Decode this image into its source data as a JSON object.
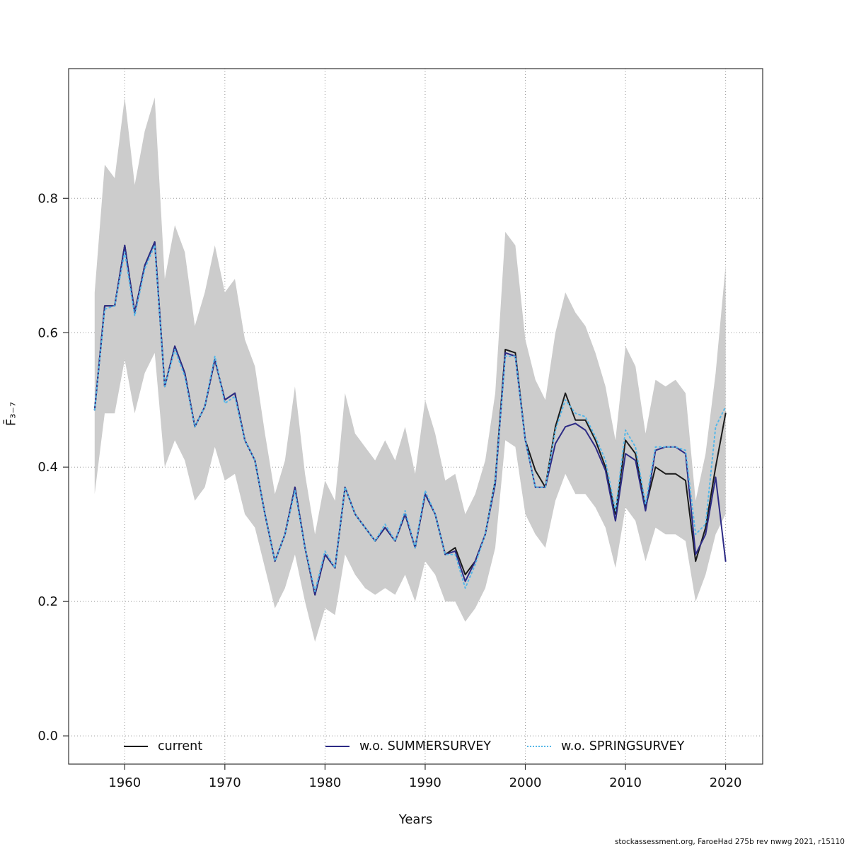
{
  "footer": {
    "text": "stockassessment.org, FaroeHad 275b rev nwwg 2021, r15110"
  },
  "chart_data": {
    "type": "line",
    "title": "",
    "xlabel": "Years",
    "ylabel": "F̄₃₋₇",
    "grid": true,
    "legend_position": "bottom-inside",
    "xlim": [
      1954.4,
      2023.7
    ],
    "ylim": [
      -0.042,
      0.993
    ],
    "x_ticks": [
      1960,
      1970,
      1980,
      1990,
      2000,
      2010,
      2020
    ],
    "y_ticks": [
      0.0,
      0.2,
      0.4,
      0.6,
      0.8
    ],
    "x": [
      1957,
      1958,
      1959,
      1960,
      1961,
      1962,
      1963,
      1964,
      1965,
      1966,
      1967,
      1968,
      1969,
      1970,
      1971,
      1972,
      1973,
      1974,
      1975,
      1976,
      1977,
      1978,
      1979,
      1980,
      1981,
      1982,
      1983,
      1984,
      1985,
      1986,
      1987,
      1988,
      1989,
      1990,
      1991,
      1992,
      1993,
      1994,
      1995,
      1996,
      1997,
      1998,
      1999,
      2000,
      2001,
      2002,
      2003,
      2004,
      2005,
      2006,
      2007,
      2008,
      2009,
      2010,
      2011,
      2012,
      2013,
      2014,
      2015,
      2016,
      2017,
      2018,
      2019,
      2020
    ],
    "band": {
      "color": "#cccccc",
      "upper": [
        0.66,
        0.85,
        0.83,
        0.95,
        0.82,
        0.9,
        0.95,
        0.68,
        0.76,
        0.72,
        0.61,
        0.66,
        0.73,
        0.66,
        0.68,
        0.59,
        0.55,
        0.45,
        0.36,
        0.41,
        0.52,
        0.39,
        0.3,
        0.38,
        0.35,
        0.51,
        0.45,
        0.43,
        0.41,
        0.44,
        0.41,
        0.46,
        0.39,
        0.5,
        0.45,
        0.38,
        0.39,
        0.33,
        0.36,
        0.41,
        0.51,
        0.75,
        0.73,
        0.59,
        0.53,
        0.5,
        0.6,
        0.66,
        0.63,
        0.61,
        0.57,
        0.52,
        0.44,
        0.58,
        0.55,
        0.45,
        0.53,
        0.52,
        0.53,
        0.51,
        0.35,
        0.42,
        0.54,
        0.7
      ],
      "lower": [
        0.36,
        0.48,
        0.48,
        0.56,
        0.48,
        0.54,
        0.57,
        0.4,
        0.44,
        0.41,
        0.35,
        0.37,
        0.43,
        0.38,
        0.39,
        0.33,
        0.31,
        0.25,
        0.19,
        0.22,
        0.27,
        0.2,
        0.14,
        0.19,
        0.18,
        0.27,
        0.24,
        0.22,
        0.21,
        0.22,
        0.21,
        0.24,
        0.2,
        0.26,
        0.24,
        0.2,
        0.2,
        0.17,
        0.19,
        0.22,
        0.28,
        0.44,
        0.43,
        0.33,
        0.3,
        0.28,
        0.35,
        0.39,
        0.36,
        0.36,
        0.34,
        0.31,
        0.25,
        0.34,
        0.32,
        0.26,
        0.31,
        0.3,
        0.3,
        0.29,
        0.2,
        0.24,
        0.3,
        0.33
      ]
    },
    "series": [
      {
        "name": "current",
        "color": "#1a1a1a",
        "style": "solid",
        "values": [
          0.485,
          0.64,
          0.64,
          0.73,
          0.63,
          0.7,
          0.735,
          0.52,
          0.58,
          0.54,
          0.46,
          0.49,
          0.56,
          0.5,
          0.51,
          0.44,
          0.41,
          0.33,
          0.26,
          0.3,
          0.37,
          0.28,
          0.21,
          0.27,
          0.25,
          0.37,
          0.33,
          0.31,
          0.29,
          0.31,
          0.29,
          0.33,
          0.28,
          0.36,
          0.33,
          0.27,
          0.28,
          0.24,
          0.26,
          0.3,
          0.38,
          0.575,
          0.57,
          0.44,
          0.395,
          0.37,
          0.46,
          0.51,
          0.47,
          0.47,
          0.44,
          0.4,
          0.33,
          0.44,
          0.42,
          0.34,
          0.4,
          0.39,
          0.39,
          0.38,
          0.26,
          0.31,
          0.4,
          0.48
        ]
      },
      {
        "name": "w.o. SUMMERSURVEY",
        "color": "#2d2b85",
        "style": "solid",
        "values": [
          0.485,
          0.64,
          0.64,
          0.73,
          0.63,
          0.7,
          0.735,
          0.52,
          0.58,
          0.54,
          0.46,
          0.49,
          0.56,
          0.5,
          0.51,
          0.44,
          0.41,
          0.33,
          0.26,
          0.3,
          0.37,
          0.28,
          0.21,
          0.27,
          0.25,
          0.37,
          0.33,
          0.31,
          0.29,
          0.31,
          0.29,
          0.33,
          0.28,
          0.36,
          0.33,
          0.27,
          0.275,
          0.23,
          0.26,
          0.3,
          0.375,
          0.57,
          0.565,
          0.44,
          0.37,
          0.37,
          0.435,
          0.46,
          0.465,
          0.455,
          0.43,
          0.395,
          0.32,
          0.42,
          0.41,
          0.335,
          0.425,
          0.43,
          0.43,
          0.42,
          0.27,
          0.3,
          0.385,
          0.26
        ]
      },
      {
        "name": "w.o. SPRINGSURVEY",
        "color": "#55b7e8",
        "style": "dotted",
        "values": [
          0.485,
          0.635,
          0.64,
          0.72,
          0.625,
          0.695,
          0.73,
          0.52,
          0.575,
          0.535,
          0.46,
          0.49,
          0.565,
          0.495,
          0.505,
          0.44,
          0.41,
          0.33,
          0.26,
          0.3,
          0.365,
          0.28,
          0.215,
          0.275,
          0.25,
          0.37,
          0.33,
          0.31,
          0.29,
          0.315,
          0.29,
          0.335,
          0.28,
          0.365,
          0.33,
          0.27,
          0.27,
          0.22,
          0.255,
          0.3,
          0.38,
          0.565,
          0.565,
          0.44,
          0.37,
          0.37,
          0.455,
          0.5,
          0.48,
          0.475,
          0.445,
          0.41,
          0.335,
          0.455,
          0.43,
          0.345,
          0.43,
          0.43,
          0.43,
          0.425,
          0.3,
          0.315,
          0.46,
          0.49
        ]
      }
    ]
  }
}
